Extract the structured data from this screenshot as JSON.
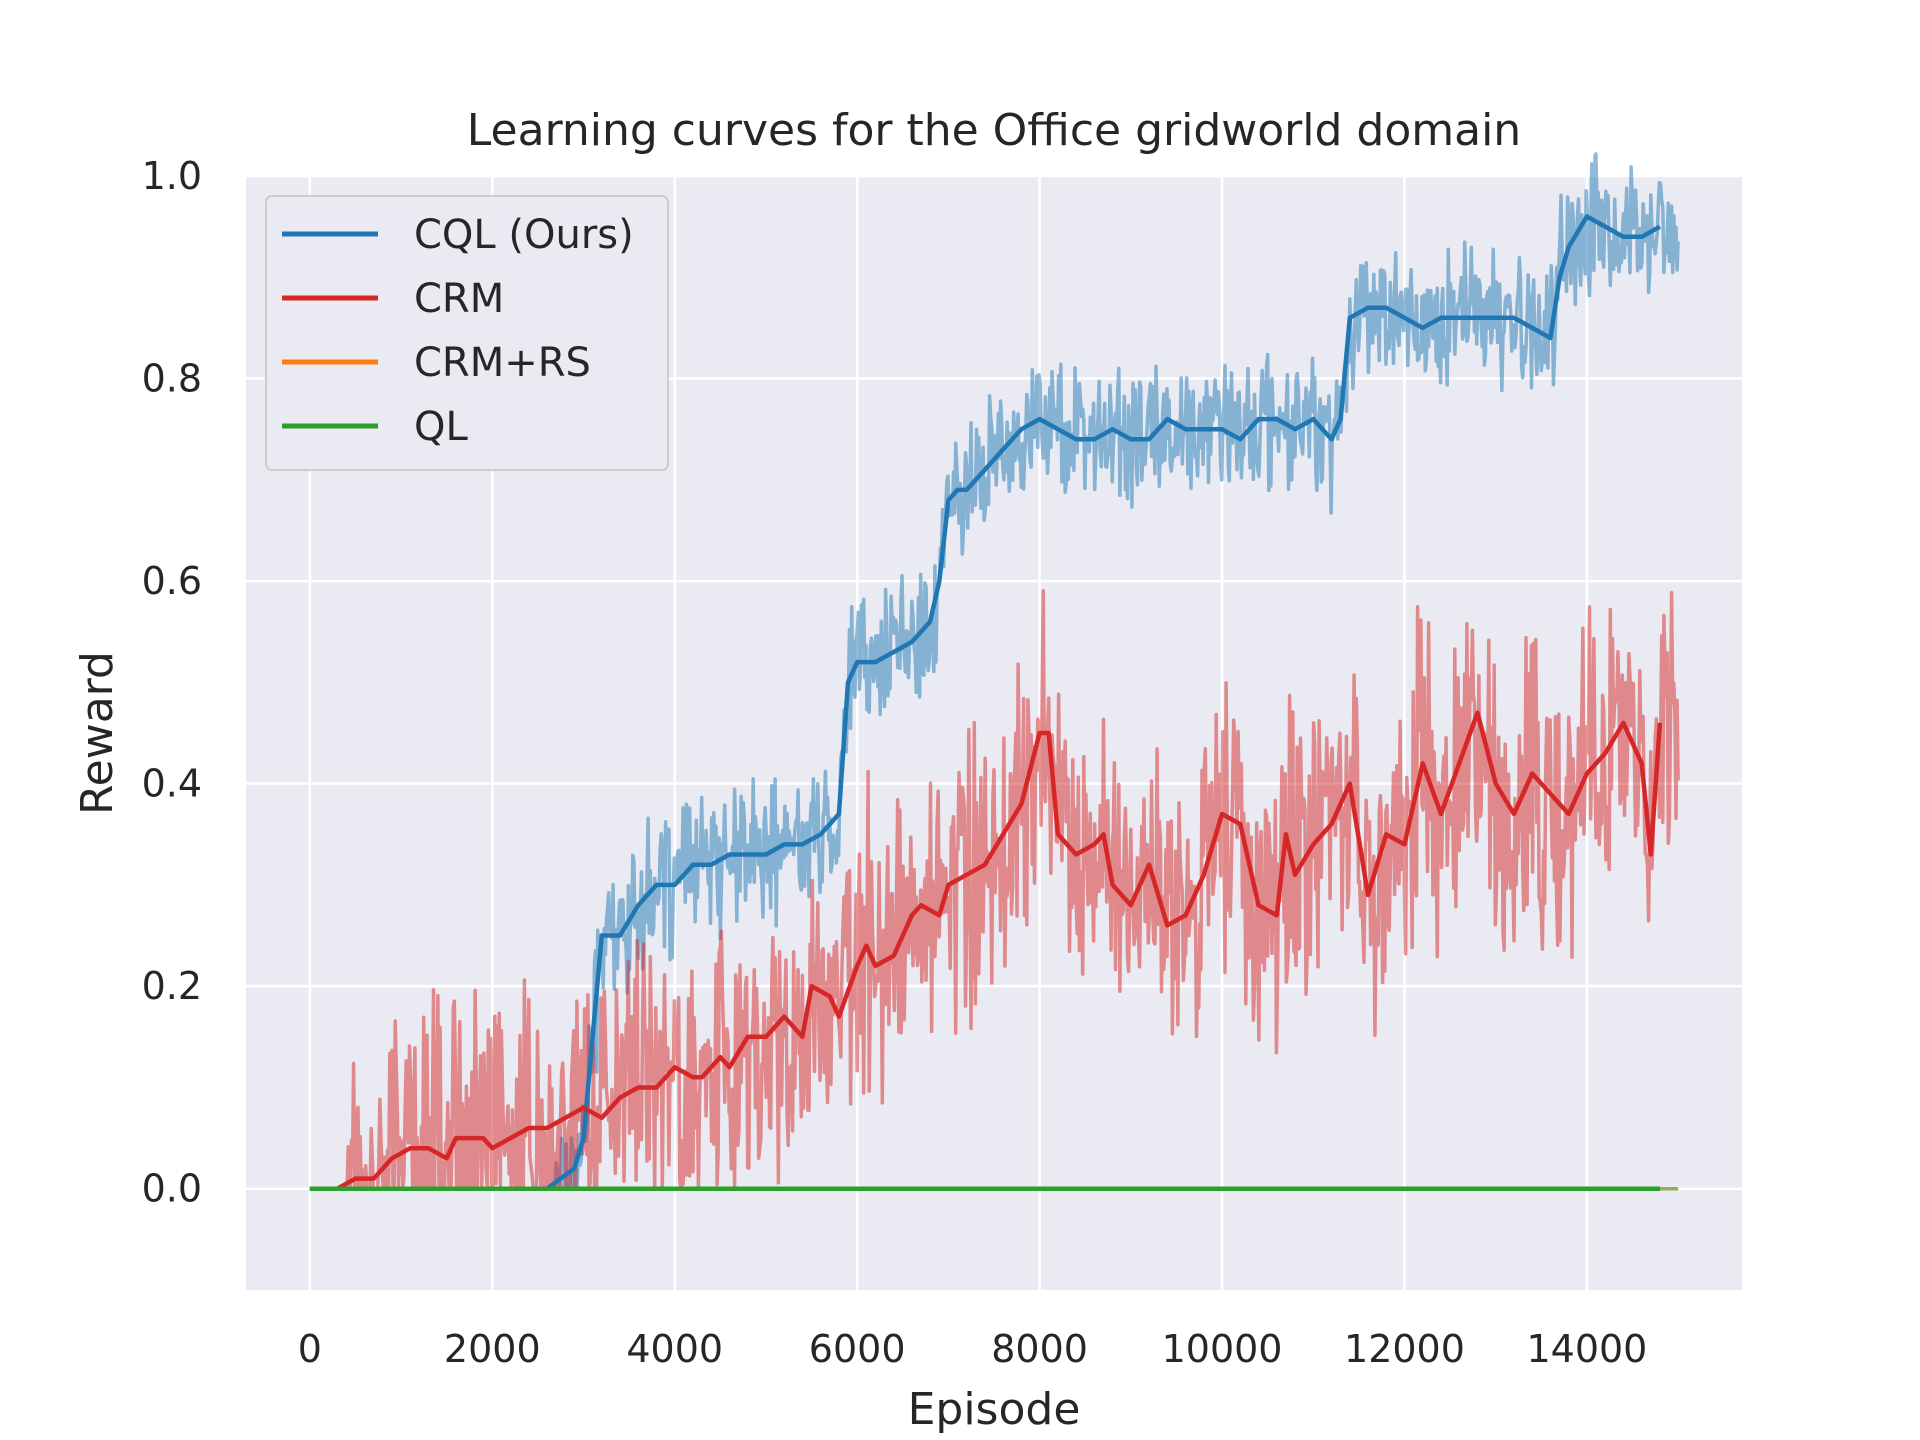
{
  "chart_data": {
    "type": "line",
    "title": "Learning curves for the Office gridworld domain",
    "xlabel": "Episode",
    "ylabel": "Reward",
    "xlim": [
      -700,
      15700
    ],
    "ylim": [
      -0.1,
      1.0
    ],
    "xticks": [
      0,
      2000,
      4000,
      6000,
      8000,
      10000,
      12000,
      14000
    ],
    "yticks": [
      0.0,
      0.2,
      0.4,
      0.6,
      0.8,
      1.0
    ],
    "xtick_labels": [
      "0",
      "2000",
      "4000",
      "6000",
      "8000",
      "10000",
      "12000",
      "14000"
    ],
    "ytick_labels": [
      "0.0",
      "0.2",
      "0.4",
      "0.6",
      "0.8",
      "1.0"
    ],
    "grid": true,
    "legend_position": "top-left",
    "series": [
      {
        "name": "CQL (Ours)",
        "color": "#1f77b4",
        "raw_range": [
          0,
          15000
        ],
        "x": [
          0,
          2600,
          2900,
          3000,
          3100,
          3200,
          3300,
          3400,
          3600,
          3800,
          4000,
          4200,
          4400,
          4600,
          4800,
          5000,
          5200,
          5400,
          5600,
          5800,
          5900,
          6000,
          6200,
          6400,
          6600,
          6800,
          6900,
          7000,
          7100,
          7200,
          7400,
          7600,
          7800,
          8000,
          8200,
          8400,
          8600,
          8800,
          9000,
          9200,
          9400,
          9600,
          9800,
          10000,
          10200,
          10400,
          10600,
          10800,
          11000,
          11200,
          11300,
          11400,
          11600,
          11800,
          12000,
          12200,
          12400,
          12600,
          12800,
          13000,
          13200,
          13400,
          13600,
          13700,
          13800,
          14000,
          14200,
          14400,
          14600,
          14800
        ],
        "y": [
          0.0,
          0.0,
          0.02,
          0.05,
          0.15,
          0.25,
          0.25,
          0.25,
          0.28,
          0.3,
          0.3,
          0.32,
          0.32,
          0.33,
          0.33,
          0.33,
          0.34,
          0.34,
          0.35,
          0.37,
          0.5,
          0.52,
          0.52,
          0.53,
          0.54,
          0.56,
          0.6,
          0.68,
          0.69,
          0.69,
          0.71,
          0.73,
          0.75,
          0.76,
          0.75,
          0.74,
          0.74,
          0.75,
          0.74,
          0.74,
          0.76,
          0.75,
          0.75,
          0.75,
          0.74,
          0.76,
          0.76,
          0.75,
          0.76,
          0.74,
          0.76,
          0.86,
          0.87,
          0.87,
          0.86,
          0.85,
          0.86,
          0.86,
          0.86,
          0.86,
          0.86,
          0.85,
          0.84,
          0.9,
          0.93,
          0.96,
          0.95,
          0.94,
          0.94,
          0.95
        ],
        "raw_spread": 0.06
      },
      {
        "name": "CRM",
        "color": "#d62728",
        "raw_range": [
          0,
          15000
        ],
        "x": [
          0,
          300,
          500,
          700,
          900,
          1100,
          1300,
          1500,
          1600,
          1800,
          1900,
          2000,
          2200,
          2400,
          2600,
          2800,
          3000,
          3200,
          3400,
          3600,
          3800,
          4000,
          4200,
          4300,
          4500,
          4600,
          4800,
          5000,
          5200,
          5400,
          5500,
          5700,
          5800,
          6000,
          6100,
          6200,
          6400,
          6600,
          6700,
          6900,
          7000,
          7200,
          7400,
          7600,
          7800,
          8000,
          8100,
          8200,
          8400,
          8600,
          8700,
          8800,
          9000,
          9200,
          9400,
          9600,
          9800,
          10000,
          10200,
          10400,
          10600,
          10700,
          10800,
          11000,
          11200,
          11400,
          11600,
          11800,
          12000,
          12200,
          12400,
          12600,
          12800,
          13000,
          13200,
          13400,
          13600,
          13800,
          14000,
          14200,
          14400,
          14600,
          14700,
          14800
        ],
        "y": [
          0.0,
          0.0,
          0.01,
          0.01,
          0.03,
          0.04,
          0.04,
          0.03,
          0.05,
          0.05,
          0.05,
          0.04,
          0.05,
          0.06,
          0.06,
          0.07,
          0.08,
          0.07,
          0.09,
          0.1,
          0.1,
          0.12,
          0.11,
          0.11,
          0.13,
          0.12,
          0.15,
          0.15,
          0.17,
          0.15,
          0.2,
          0.19,
          0.17,
          0.22,
          0.24,
          0.22,
          0.23,
          0.27,
          0.28,
          0.27,
          0.3,
          0.31,
          0.32,
          0.35,
          0.38,
          0.45,
          0.45,
          0.35,
          0.33,
          0.34,
          0.35,
          0.3,
          0.28,
          0.32,
          0.26,
          0.27,
          0.31,
          0.37,
          0.36,
          0.28,
          0.27,
          0.35,
          0.31,
          0.34,
          0.36,
          0.4,
          0.29,
          0.35,
          0.34,
          0.42,
          0.37,
          0.42,
          0.47,
          0.4,
          0.37,
          0.41,
          0.39,
          0.37,
          0.41,
          0.43,
          0.46,
          0.42,
          0.33,
          0.46
        ],
        "raw_spread": 0.13
      },
      {
        "name": "CRM+RS",
        "color": "#ff7f0e",
        "raw_range": [
          0,
          15000
        ],
        "x": [
          0,
          14800
        ],
        "y": [
          0.0,
          0.0
        ],
        "raw_spread": 0.0
      },
      {
        "name": "QL",
        "color": "#2ca02c",
        "raw_range": [
          0,
          15000
        ],
        "x": [
          0,
          14800
        ],
        "y": [
          0.0,
          0.0
        ],
        "raw_spread": 0.0
      }
    ]
  }
}
